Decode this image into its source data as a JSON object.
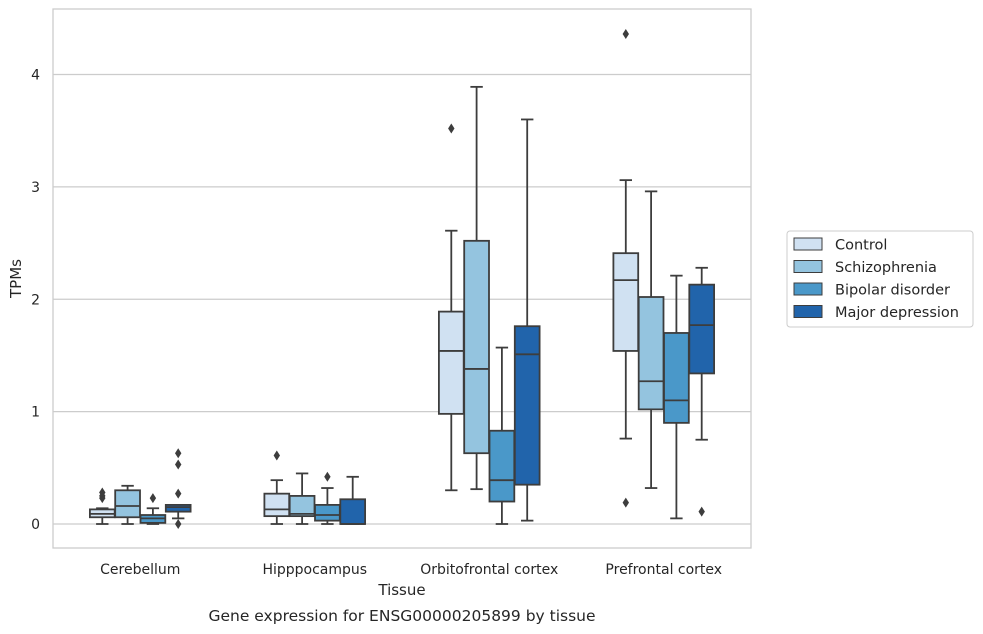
{
  "caption": "Gene expression for ENSG00000205899 by tissue",
  "chart_data": {
    "type": "box",
    "xlabel": "Tissue",
    "ylabel": "TPMs",
    "ylim": [
      -0.2,
      4.6
    ],
    "yticks": [
      0,
      1,
      2,
      3,
      4
    ],
    "grid": "horizontal",
    "legend_position": "right",
    "categories": [
      "Cerebellum",
      "Hipppocampus",
      "Orbitofrontal cortex",
      "Prefrontal cortex"
    ],
    "series": [
      {
        "name": "Control",
        "color": "#d0e1f2",
        "boxes": [
          {
            "whislo": 0.0,
            "q1": 0.06,
            "med": 0.09,
            "q3": 0.13,
            "whishi": 0.14,
            "fliers": [
              0.23,
              0.25,
              0.28
            ]
          },
          {
            "whislo": 0.0,
            "q1": 0.07,
            "med": 0.13,
            "q3": 0.27,
            "whishi": 0.39,
            "fliers": [
              0.61
            ]
          },
          {
            "whislo": 0.3,
            "q1": 0.98,
            "med": 1.54,
            "q3": 1.89,
            "whishi": 2.61,
            "fliers": [
              3.52
            ]
          },
          {
            "whislo": 0.76,
            "q1": 1.54,
            "med": 2.17,
            "q3": 2.41,
            "whishi": 3.06,
            "fliers": [
              0.19,
              4.36
            ]
          }
        ]
      },
      {
        "name": "Schizophrenia",
        "color": "#94c4df",
        "boxes": [
          {
            "whislo": 0.0,
            "q1": 0.06,
            "med": 0.16,
            "q3": 0.3,
            "whishi": 0.34,
            "fliers": []
          },
          {
            "whislo": 0.0,
            "q1": 0.07,
            "med": 0.09,
            "q3": 0.25,
            "whishi": 0.45,
            "fliers": []
          },
          {
            "whislo": 0.31,
            "q1": 0.63,
            "med": 1.38,
            "q3": 2.52,
            "whishi": 3.89,
            "fliers": []
          },
          {
            "whislo": 0.32,
            "q1": 1.02,
            "med": 1.27,
            "q3": 2.02,
            "whishi": 2.96,
            "fliers": []
          }
        ]
      },
      {
        "name": "Bipolar disorder",
        "color": "#4a98c9",
        "boxes": [
          {
            "whislo": 0.0,
            "q1": 0.01,
            "med": 0.05,
            "q3": 0.08,
            "whishi": 0.14,
            "fliers": [
              0.23
            ]
          },
          {
            "whislo": 0.0,
            "q1": 0.03,
            "med": 0.08,
            "q3": 0.17,
            "whishi": 0.32,
            "fliers": [
              0.42
            ]
          },
          {
            "whislo": 0.0,
            "q1": 0.2,
            "med": 0.39,
            "q3": 0.83,
            "whishi": 1.57,
            "fliers": []
          },
          {
            "whislo": 0.05,
            "q1": 0.9,
            "med": 1.1,
            "q3": 1.7,
            "whishi": 2.21,
            "fliers": []
          }
        ]
      },
      {
        "name": "Major depression",
        "color": "#2164ab",
        "boxes": [
          {
            "whislo": 0.05,
            "q1": 0.11,
            "med": 0.15,
            "q3": 0.17,
            "whishi": 0.17,
            "fliers": [
              0.0,
              0.27,
              0.53,
              0.63
            ]
          },
          {
            "whislo": 0.0,
            "q1": 0.0,
            "med": 0.0,
            "q3": 0.22,
            "whishi": 0.42,
            "fliers": []
          },
          {
            "whislo": 0.03,
            "q1": 0.35,
            "med": 1.51,
            "q3": 1.76,
            "whishi": 3.6,
            "fliers": []
          },
          {
            "whislo": 0.75,
            "q1": 1.34,
            "med": 1.77,
            "q3": 2.13,
            "whishi": 2.28,
            "fliers": [
              0.11
            ]
          }
        ]
      }
    ]
  }
}
